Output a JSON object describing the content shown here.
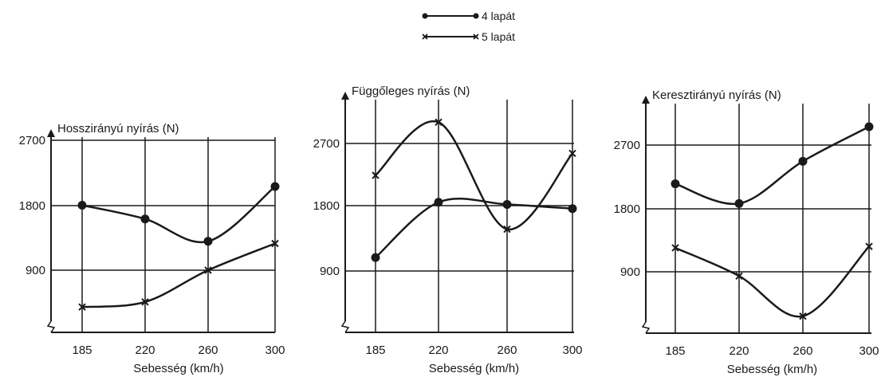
{
  "legend": [
    {
      "label": "4 lapát",
      "marker": "circle"
    },
    {
      "label": "5 lapát",
      "marker": "cross"
    }
  ],
  "colors": {
    "ink": "#1a1a1a",
    "background": "#ffffff"
  },
  "chart_data": [
    {
      "type": "line",
      "title": "Hosszirányú nyírás (N)",
      "xlabel": "Sebesség (km/h)",
      "ylabel": "",
      "categories": [
        "185",
        "220",
        "260",
        "300"
      ],
      "y_ticks": [
        "900",
        "1800",
        "2700"
      ],
      "ylim": [
        0,
        2700
      ],
      "grid": true,
      "legend_position": "top-center",
      "series": [
        {
          "name": "4 lapát",
          "marker": "circle",
          "values": [
            1800,
            1610,
            1300,
            2060
          ]
        },
        {
          "name": "5 lapát",
          "marker": "cross",
          "values": [
            390,
            460,
            900,
            1270
          ]
        }
      ]
    },
    {
      "type": "line",
      "title": "Függőleges nyírás (N)",
      "xlabel": "Sebesség (km/h)",
      "ylabel": "",
      "categories": [
        "185",
        "220",
        "260",
        "300"
      ],
      "y_ticks": [
        "900",
        "1800",
        "2700"
      ],
      "ylim": [
        0,
        2700
      ],
      "grid": true,
      "legend_position": "top-center",
      "series": [
        {
          "name": "4 lapát",
          "marker": "circle",
          "values": [
            1090,
            1870,
            1840,
            1780
          ]
        },
        {
          "name": "5 lapát",
          "marker": "cross",
          "values": [
            2250,
            3000,
            1490,
            2560
          ]
        }
      ]
    },
    {
      "type": "line",
      "title": "Keresztirányú nyírás (N)",
      "xlabel": "Sebesség (km/h)",
      "ylabel": "",
      "categories": [
        "185",
        "220",
        "260",
        "300"
      ],
      "y_ticks": [
        "900",
        "1800",
        "2700"
      ],
      "ylim": [
        0,
        2700
      ],
      "grid": true,
      "legend_position": "top-center",
      "series": [
        {
          "name": "4 lapát",
          "marker": "circle",
          "values": [
            2150,
            1870,
            2470,
            2960
          ]
        },
        {
          "name": "5 lapát",
          "marker": "cross",
          "values": [
            1240,
            840,
            270,
            1260
          ]
        }
      ]
    }
  ]
}
